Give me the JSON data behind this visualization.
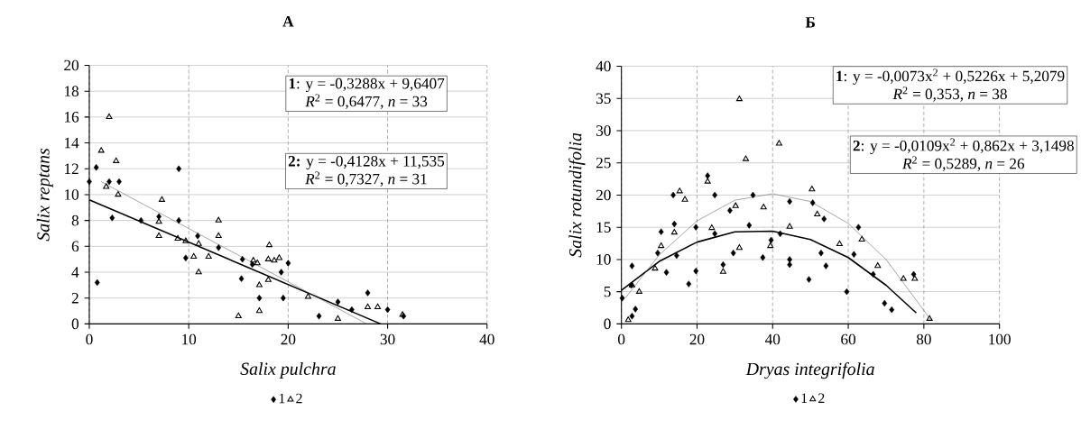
{
  "chart_data": [
    {
      "type": "scatter",
      "title": "А",
      "xlabel": "Salix pulchra",
      "ylabel": "Salix reptans",
      "xlim": [
        0,
        40
      ],
      "ylim": [
        0,
        20
      ],
      "xticks": [
        0,
        10,
        20,
        30,
        40
      ],
      "yticks": [
        0,
        2,
        4,
        6,
        8,
        10,
        12,
        14,
        16,
        18,
        20
      ],
      "grid": true,
      "legend": "bottom",
      "annotations": [
        "**1**: y = -0,3288x + 9,6407",
        "*R*$^{2}$ = 0,6477, *n* = 33",
        "**2:** y = -0,4128x + 11,535",
        "*R*$^{2}$ = 0,7327, *n* = 31"
      ],
      "series": [
        {
          "name": "1",
          "marker": "diamond",
          "color": "#000000",
          "x": [
            0,
            0.7,
            0.8,
            2,
            2.3,
            3,
            5.2,
            7,
            9,
            9,
            9.7,
            10.9,
            13,
            15.4,
            15.3,
            16.4,
            17.1,
            19.3,
            19.5,
            20,
            23.1,
            25,
            26.4,
            28,
            30,
            31.6
          ],
          "values": [
            11,
            12.1,
            3.2,
            11,
            8.2,
            11,
            8,
            8.3,
            12,
            8,
            5.1,
            6.8,
            5.9,
            5,
            3.5,
            4.6,
            2,
            4,
            2,
            4.7,
            0.6,
            1.7,
            1.1,
            2.4,
            1.1,
            0.6
          ]
        },
        {
          "name": "2",
          "marker": "triangle",
          "color": "#000000",
          "x": [
            2,
            1.2,
            2.7,
            1.7,
            2.9,
            7.3,
            7,
            7,
            8.9,
            9.7,
            10.5,
            11,
            11,
            12,
            13,
            13,
            15,
            16.5,
            16.9,
            17.1,
            17.1,
            18,
            18.1,
            18,
            18.6,
            19.1,
            22,
            25,
            28,
            29,
            31.5
          ],
          "values": [
            16,
            13.4,
            12.6,
            10.6,
            10,
            9.6,
            7.9,
            6.8,
            6.6,
            6.4,
            5.2,
            6.2,
            4,
            5.2,
            8,
            6.8,
            0.6,
            4.9,
            4.7,
            3,
            1,
            3.4,
            6.1,
            5,
            4.9,
            5.1,
            2.1,
            0.4,
            1.3,
            1.3,
            0.7
          ]
        },
        {
          "type": "line",
          "line_style": "solid",
          "color": "#000000",
          "x": [
            0,
            29.3
          ],
          "values": [
            9.6,
            0
          ]
        },
        {
          "type": "line",
          "line_style": "solid",
          "color": "#595959",
          "x": [
            1.2,
            27.9
          ],
          "values": [
            11,
            0
          ]
        }
      ]
    },
    {
      "type": "scatter",
      "title": "Б",
      "xlabel": "Dryas integrifolia",
      "ylabel": "Salix rotundifolia",
      "xlim": [
        0,
        100
      ],
      "ylim": [
        0,
        40
      ],
      "xticks": [
        0,
        20,
        40,
        60,
        80,
        100
      ],
      "yticks": [
        0,
        5,
        10,
        15,
        20,
        25,
        30,
        35,
        40
      ],
      "grid": true,
      "legend": "bottom",
      "annotations": [
        "**1**: y = -0,0073x$^{2}$ + 0,5226x + 5,2079",
        "*R*$^{2}$ = 0,353, *n* = 38",
        "**2**: y = -0,0109x$^{2}$ + 0,862x + 3,1498",
        "*R*$^{2}$ = 0,5289, *n* = 26"
      ],
      "series": [
        {
          "name": "1",
          "marker": "diamond",
          "color": "#000000",
          "x": [
            0.2,
            2.8,
            2.8,
            2.6,
            3.7,
            9.6,
            10.5,
            11.9,
            13.7,
            14,
            14.6,
            17.8,
            19.7,
            19.7,
            22.8,
            24.7,
            24.7,
            26.9,
            28.7,
            29.6,
            34.8,
            33.8,
            37.4,
            44.5,
            42,
            39.6,
            44.5,
            44.5,
            49.6,
            50.6,
            52.8,
            53.6,
            54.1,
            59.6,
            61.5,
            62.7,
            66.6,
            69.6,
            71.5,
            77.3
          ],
          "values": [
            4,
            1.2,
            9,
            6,
            2.3,
            11,
            14.3,
            8,
            20,
            15.5,
            10.6,
            6.2,
            15,
            8.2,
            23,
            20,
            14,
            9.2,
            17.6,
            11,
            20,
            15.3,
            10.3,
            19,
            14,
            13,
            10,
            9.2,
            6.9,
            18.8,
            11,
            16.3,
            9,
            5,
            10.8,
            15,
            7.7,
            3.2,
            2.2,
            7.7
          ]
        },
        {
          "name": "2",
          "marker": "triangle",
          "color": "#000000",
          "x": [
            1.8,
            2.8,
            4.7,
            8.9,
            10.5,
            14,
            15.4,
            16.8,
            22.8,
            23.9,
            26.9,
            30.2,
            31.2,
            31.2,
            32.9,
            37.6,
            39.4,
            41.7,
            44.5,
            50.4,
            51.8,
            57.7,
            63.6,
            67.8,
            74.6,
            77.6,
            81.5
          ],
          "values": [
            0.6,
            6,
            5,
            8.6,
            12.1,
            14.2,
            20.6,
            19.3,
            22.1,
            14.9,
            8.1,
            18.3,
            11.8,
            34.9,
            25.6,
            18.1,
            12.1,
            28,
            15.1,
            20.9,
            17,
            12.4,
            13.1,
            9,
            7,
            7,
            0.8
          ]
        },
        {
          "type": "line",
          "line_style": "solid",
          "color": "#000000",
          "x": [
            0,
            10,
            20,
            30,
            40,
            50,
            60,
            70,
            78
          ],
          "values": [
            5.2,
            9.7,
            12.7,
            14.3,
            14.4,
            13.1,
            10.3,
            6,
            1.7
          ]
        },
        {
          "type": "line",
          "line_style": "solid",
          "color": "#595959",
          "x": [
            1,
            10,
            20,
            30,
            40,
            50,
            60,
            70,
            82
          ],
          "values": [
            4,
            10.7,
            16,
            19.2,
            20.2,
            19,
            15.6,
            10,
            0.5
          ]
        }
      ]
    }
  ]
}
